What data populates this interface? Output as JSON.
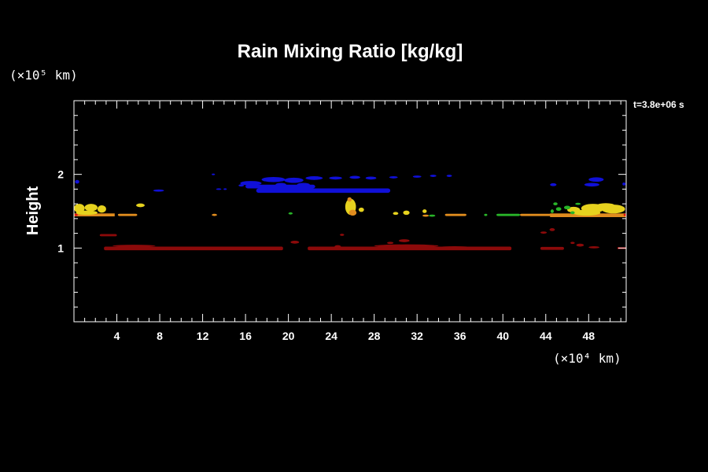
{
  "chart_data": {
    "type": "heatmap",
    "title": "Rain Mixing Ratio [kg/kg]",
    "ylabel": "Height",
    "y_unit": "(×10⁵ km)",
    "x_unit": "(×10⁴ km)",
    "time_label": "t=3.8e+06 s",
    "xlim": [
      0,
      51.5
    ],
    "ylim": [
      0,
      3.0
    ],
    "x_ticks": [
      4,
      8,
      12,
      16,
      20,
      24,
      28,
      32,
      36,
      40,
      44,
      48
    ],
    "y_ticks": [
      1,
      2
    ],
    "colors": {
      "blue": "#1010d8",
      "yellow": "#e6d21e",
      "orange": "#e08c1e",
      "green": "#28b428",
      "darkred": "#8c0a0a",
      "red": "#e01010"
    },
    "features": [
      {
        "name": "upper blue layer",
        "color": "blue",
        "x": [
          12.5,
          38.0
        ],
        "y": [
          1.72,
          1.98
        ]
      },
      {
        "name": "blue right edge",
        "color": "blue",
        "x": [
          43.5,
          51.5
        ],
        "y": [
          1.85,
          1.98
        ]
      },
      {
        "name": "yellow layer left",
        "color": "yellow",
        "x": [
          0.0,
          3.5
        ],
        "y": [
          1.4,
          1.62
        ]
      },
      {
        "name": "yellow plume",
        "color": "yellow",
        "x": [
          25.4,
          26.3
        ],
        "y": [
          1.4,
          1.68
        ]
      },
      {
        "name": "yellow layer right",
        "color": "yellow",
        "x": [
          45.0,
          51.5
        ],
        "y": [
          1.4,
          1.6
        ]
      },
      {
        "name": "orange green band",
        "color": "orange",
        "x": [
          20.0,
          51.5
        ],
        "y": [
          1.4,
          1.48
        ]
      },
      {
        "name": "dark red layer",
        "color": "darkred",
        "x": [
          2.8,
          51.5
        ],
        "y": [
          0.97,
          1.02
        ]
      }
    ]
  }
}
